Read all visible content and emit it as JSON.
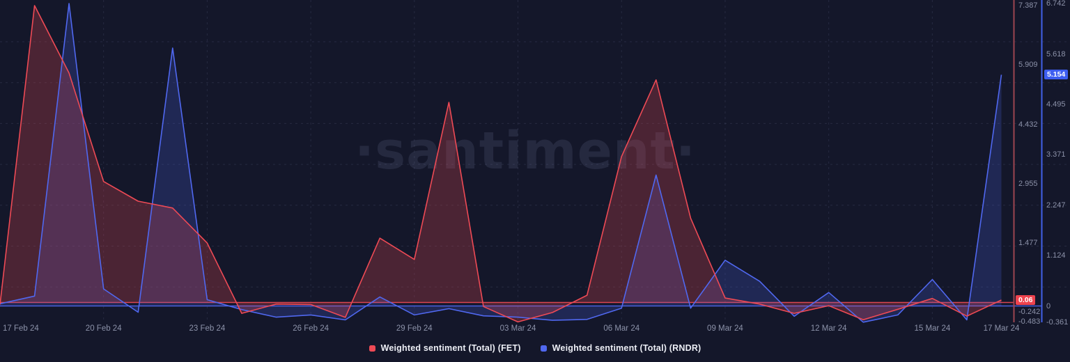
{
  "chart_data": {
    "type": "area",
    "title": "",
    "watermark": "·santiment·",
    "grid": true,
    "legend_position": "bottom-center",
    "n_points": 30,
    "x_tick_labels": [
      "17 Feb 24",
      "20 Feb 24",
      "23 Feb 24",
      "26 Feb 24",
      "29 Feb 24",
      "03 Mar 24",
      "06 Mar 24",
      "09 Mar 24",
      "12 Mar 24",
      "15 Mar 24",
      "17 Mar 24"
    ],
    "x_tick_days": [
      0,
      3,
      6,
      9,
      12,
      15,
      18,
      21,
      24,
      27,
      29
    ],
    "series": [
      {
        "name": "Weighted sentiment (Total) (FET)",
        "axis": "fet",
        "color": "#ee4a55",
        "values": [
          -0.05,
          7.387,
          5.71,
          3.01,
          2.52,
          2.35,
          1.48,
          -0.27,
          -0.04,
          -0.05,
          -0.37,
          1.6,
          1.07,
          4.98,
          -0.1,
          -0.483,
          -0.25,
          0.18,
          3.63,
          5.54,
          2.1,
          0.11,
          -0.04,
          -0.27,
          -0.08,
          -0.43,
          -0.17,
          0.1,
          -0.34,
          0.06
        ]
      },
      {
        "name": "Weighted sentiment (Total) (RNDR)",
        "axis": "rndr",
        "color": "#5068f0",
        "values": [
          0.05,
          0.22,
          6.742,
          0.38,
          -0.14,
          5.75,
          0.14,
          -0.08,
          -0.25,
          -0.2,
          -0.31,
          0.2,
          -0.2,
          -0.06,
          -0.22,
          -0.25,
          -0.32,
          -0.3,
          -0.05,
          2.92,
          -0.05,
          1.02,
          0.55,
          -0.23,
          0.3,
          -0.361,
          -0.2,
          0.59,
          -0.31,
          5.154
        ]
      }
    ],
    "axes": {
      "fet": {
        "axis_line_color": "#9c4550",
        "ticks": [
          {
            "label": "7.387",
            "v": 7.387
          },
          {
            "label": "5.909",
            "v": 5.909
          },
          {
            "label": "4.432",
            "v": 4.432
          },
          {
            "label": "2.955",
            "v": 2.955
          },
          {
            "label": "1.477",
            "v": 1.477
          },
          {
            "label": "0",
            "v": 0
          },
          {
            "label": "-0.242",
            "v": -0.242
          },
          {
            "label": "-0.483",
            "v": -0.483
          }
        ],
        "ylim": [
          -0.483,
          7.387
        ],
        "badge": {
          "label": "0.06",
          "v": 0.06,
          "color": "#ef434e"
        }
      },
      "rndr": {
        "axis_line_color": "#4160e8",
        "ticks": [
          {
            "label": "6.742",
            "v": 6.742
          },
          {
            "label": "5.618",
            "v": 5.618
          },
          {
            "label": "4.495",
            "v": 4.495
          },
          {
            "label": "3.371",
            "v": 3.371
          },
          {
            "label": "2.247",
            "v": 2.247
          },
          {
            "label": "1.124",
            "v": 1.124
          },
          {
            "label": "0",
            "v": 0
          },
          {
            "label": "-0.361",
            "v": -0.361
          }
        ],
        "ylim": [
          -0.361,
          6.742
        ],
        "badge": {
          "label": "5.154",
          "v": 5.154,
          "color": "#3d5ef0"
        }
      }
    }
  }
}
